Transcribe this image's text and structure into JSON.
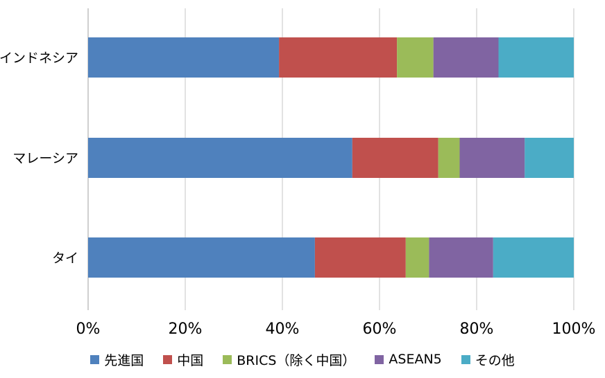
{
  "chart_data": {
    "type": "bar",
    "orientation": "horizontal",
    "stacked": "percent",
    "categories": [
      "インドネシア",
      "マレーシア",
      "タイ"
    ],
    "series": [
      {
        "name": "先進国",
        "color": "#4F81BD",
        "values": [
          39.3,
          54.4,
          46.7
        ]
      },
      {
        "name": "中国",
        "color": "#C0504D",
        "values": [
          24.3,
          17.7,
          18.7
        ]
      },
      {
        "name": "BRICS（除く中国）",
        "color": "#9BBB59",
        "values": [
          7.5,
          4.4,
          4.8
        ]
      },
      {
        "name": "ASEAN5",
        "color": "#8064A2",
        "values": [
          13.4,
          13.4,
          13.2
        ]
      },
      {
        "name": "その他",
        "color": "#4BACC6",
        "values": [
          15.5,
          10.1,
          16.6
        ]
      }
    ],
    "x_ticks": [
      "0%",
      "20%",
      "40%",
      "60%",
      "80%",
      "100%"
    ],
    "xlim": [
      0,
      100
    ],
    "grid": true,
    "legend_position": "bottom"
  }
}
